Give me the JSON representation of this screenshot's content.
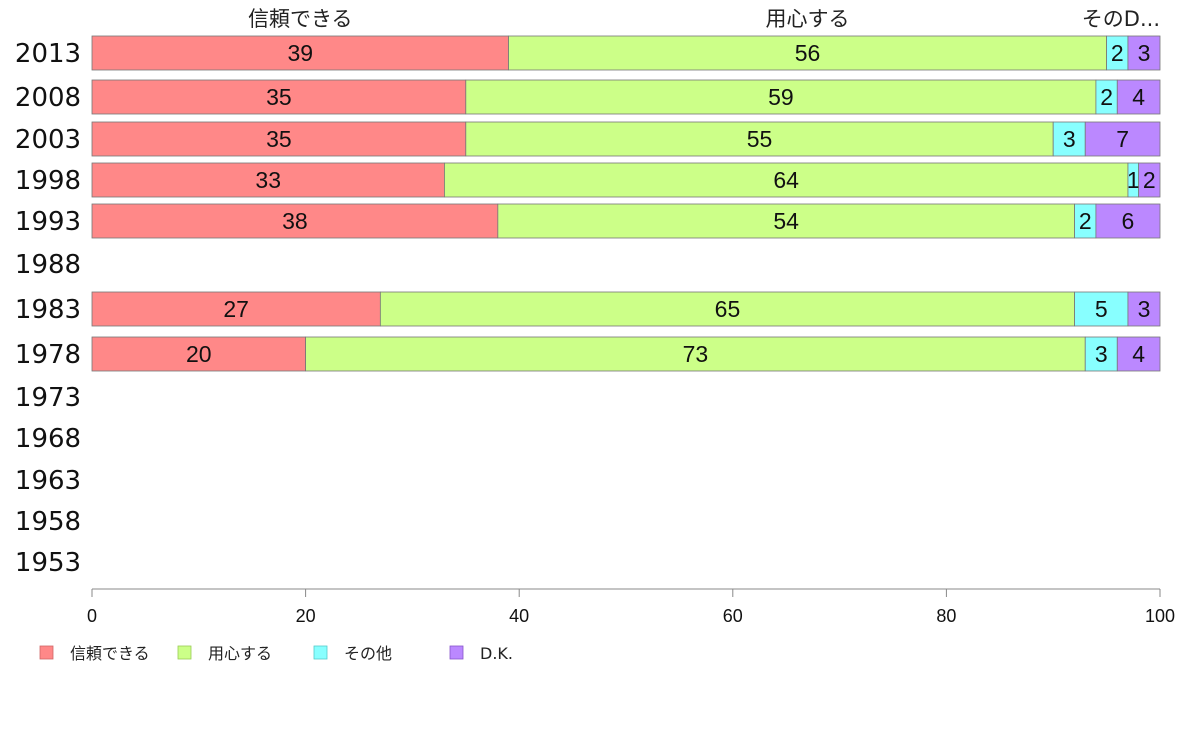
{
  "chart_data": {
    "type": "bar",
    "orientation": "horizontal",
    "stacked": true,
    "categories": [
      "2013",
      "2008",
      "2003",
      "1998",
      "1993",
      "1988",
      "1983",
      "1978",
      "1973",
      "1968",
      "1963",
      "1958",
      "1953"
    ],
    "series": [
      {
        "name": "信頼できる",
        "header": "信頼できる",
        "color": "#ff8888",
        "values": [
          39,
          35,
          35,
          33,
          38,
          null,
          27,
          20,
          null,
          null,
          null,
          null,
          null
        ],
        "labels": [
          "39",
          "35",
          "35",
          "33",
          "38",
          "",
          "27",
          "20",
          "",
          "",
          "",
          "",
          ""
        ]
      },
      {
        "name": "用心する",
        "header": "用心する",
        "color": "#ccff88",
        "values": [
          56,
          59,
          55,
          64,
          54,
          null,
          65,
          73,
          null,
          null,
          null,
          null,
          null
        ],
        "labels": [
          "56",
          "59",
          "55",
          "64",
          "54",
          "",
          "65",
          "73",
          "",
          "",
          "",
          "",
          ""
        ]
      },
      {
        "name": "その他",
        "header": "そのD...",
        "color": "#88ffff",
        "values": [
          2,
          2,
          3,
          1,
          2,
          null,
          5,
          3,
          null,
          null,
          null,
          null,
          null
        ],
        "labels": [
          "2",
          "2",
          "3",
          "1",
          "2",
          "",
          "5",
          "3",
          "",
          "",
          "",
          "",
          ""
        ]
      },
      {
        "name": "D.K.",
        "header": "",
        "color": "#bb88ff",
        "values": [
          3,
          4,
          7,
          2,
          6,
          null,
          3,
          4,
          null,
          null,
          null,
          null,
          null
        ],
        "labels": [
          "3",
          "4",
          "7",
          "2",
          "6",
          "",
          "3",
          "4",
          "",
          "",
          "",
          "",
          ""
        ]
      }
    ],
    "xlim": [
      0,
      100
    ],
    "xticks": [
      "0",
      "20",
      "40",
      "60",
      "80",
      "100"
    ],
    "grid": false,
    "legend_position": "bottom-left"
  }
}
